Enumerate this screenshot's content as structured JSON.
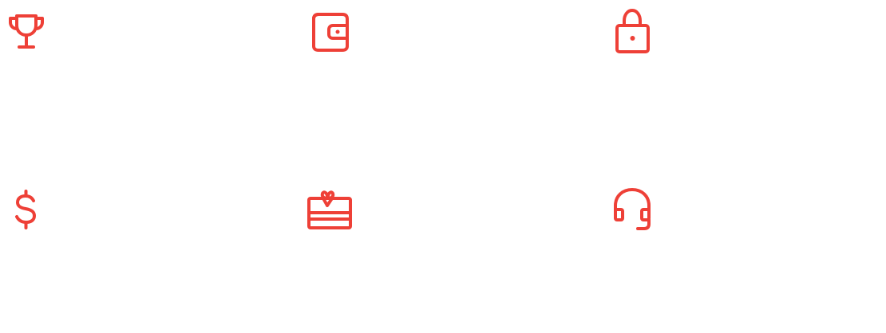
{
  "theme": {
    "accent": "#ee4037"
  },
  "icons": [
    {
      "id": "icon-trophy",
      "name": "trophy-icon"
    },
    {
      "id": "icon-wallet",
      "name": "wallet-icon"
    },
    {
      "id": "icon-lock",
      "name": "lock-icon"
    },
    {
      "id": "icon-dollar",
      "name": "dollar-icon"
    },
    {
      "id": "icon-giftcard",
      "name": "gift-card-icon"
    },
    {
      "id": "icon-headset",
      "name": "headset-icon"
    }
  ]
}
